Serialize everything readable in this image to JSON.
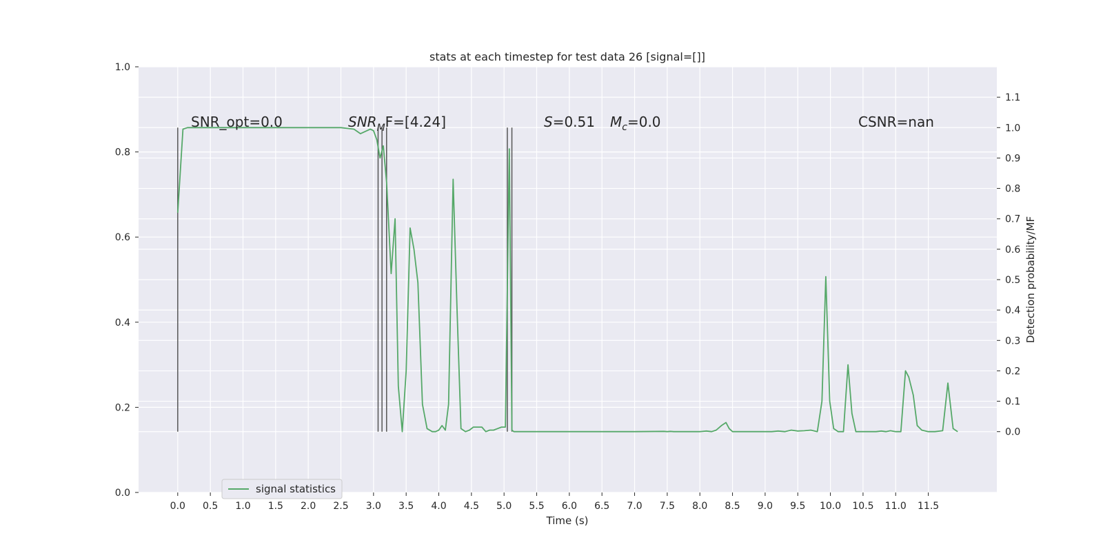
{
  "chart_data": {
    "type": "line",
    "title": "stats at each timestep for test data 26 [signal=[]]",
    "xlabel": "Time (s)",
    "ylabel_left": "",
    "ylabel_right": "Detection probability/MF",
    "xlim": [
      -0.6,
      12.55
    ],
    "ylim_left": [
      0.0,
      1.0
    ],
    "ylim_right": [
      -0.2,
      1.2
    ],
    "x_ticks": [
      "0.0",
      "0.5",
      "1.0",
      "1.5",
      "2.0",
      "2.5",
      "3.0",
      "3.5",
      "4.0",
      "4.5",
      "5.0",
      "5.5",
      "6.0",
      "6.5",
      "7.0",
      "7.5",
      "8.0",
      "8.5",
      "9.0",
      "9.5",
      "10.0",
      "10.5",
      "11.0",
      "11.5"
    ],
    "y_left_ticks": [
      "0.0",
      "0.2",
      "0.4",
      "0.6",
      "0.8",
      "1.0"
    ],
    "y_right_ticks": [
      "0.0",
      "0.1",
      "0.2",
      "0.3",
      "0.4",
      "0.5",
      "0.6",
      "0.7",
      "0.8",
      "0.9",
      "1.0",
      "1.1"
    ],
    "background_color": "#eaeaf2",
    "grid": true,
    "legend_position": "lower-left",
    "annotations": {
      "snr_opt": "SNR_opt=0.0",
      "snr_mf_base": "SNR",
      "snr_mf_sub": "M",
      "snr_mf_rest": "F=[4.24]",
      "s_label": "S",
      "s_value": "=0.51",
      "mc_base": "M",
      "mc_sub": "c",
      "mc_value": "=0.0",
      "csnr": "CSNR=nan"
    },
    "vertical_markers": [
      0.0,
      3.07,
      3.13,
      3.2,
      5.05,
      5.12
    ],
    "series": [
      {
        "name": "signal statistics",
        "color": "#55a868",
        "x": [
          0.0,
          0.08,
          0.15,
          0.25,
          0.5,
          1.0,
          1.5,
          2.0,
          2.5,
          2.7,
          2.8,
          2.9,
          2.95,
          3.0,
          3.05,
          3.1,
          3.15,
          3.2,
          3.27,
          3.33,
          3.38,
          3.44,
          3.5,
          3.56,
          3.62,
          3.68,
          3.75,
          3.82,
          3.9,
          3.95,
          4.0,
          4.05,
          4.1,
          4.15,
          4.22,
          4.28,
          4.34,
          4.41,
          4.47,
          4.53,
          4.6,
          4.66,
          4.72,
          4.78,
          4.84,
          4.9,
          4.96,
          5.02,
          5.08,
          5.12,
          5.15,
          5.2,
          5.25,
          5.35,
          5.5,
          6.0,
          6.5,
          7.0,
          7.45,
          7.5,
          7.55,
          7.6,
          8.0,
          8.1,
          8.18,
          8.25,
          8.33,
          8.4,
          8.45,
          8.5,
          8.6,
          8.8,
          9.0,
          9.1,
          9.2,
          9.3,
          9.4,
          9.5,
          9.6,
          9.7,
          9.8,
          9.87,
          9.93,
          9.99,
          10.05,
          10.12,
          10.2,
          10.27,
          10.33,
          10.39,
          10.45,
          10.55,
          10.7,
          10.78,
          10.85,
          10.92,
          11.0,
          11.08,
          11.15,
          11.2,
          11.27,
          11.33,
          11.4,
          11.5,
          11.6,
          11.72,
          11.8,
          11.88,
          11.95
        ],
        "y": [
          0.72,
          0.995,
          1.0,
          1.0,
          1.0,
          1.0,
          1.0,
          1.0,
          1.0,
          0.995,
          0.98,
          0.99,
          0.995,
          0.99,
          0.96,
          0.9,
          0.94,
          0.82,
          0.52,
          0.7,
          0.15,
          0.0,
          0.2,
          0.67,
          0.6,
          0.49,
          0.09,
          0.01,
          0.0,
          0.0,
          0.005,
          0.02,
          0.005,
          0.09,
          0.83,
          0.4,
          0.01,
          0.0,
          0.005,
          0.015,
          0.015,
          0.015,
          0.0,
          0.005,
          0.005,
          0.01,
          0.015,
          0.015,
          0.93,
          0.005,
          0.0,
          0.0,
          0.0,
          0.0,
          0.0,
          0.0,
          0.0,
          0.0,
          0.001,
          0.0,
          0.001,
          0.0,
          0.0,
          0.002,
          0.0,
          0.005,
          0.02,
          0.03,
          0.01,
          0.0,
          0.0,
          0.0,
          0.0,
          0.0,
          0.002,
          0.0,
          0.005,
          0.002,
          0.003,
          0.005,
          0.0,
          0.1,
          0.51,
          0.1,
          0.01,
          0.0,
          0.0,
          0.22,
          0.06,
          0.0,
          0.0,
          0.0,
          0.0,
          0.002,
          0.0,
          0.003,
          0.0,
          0.0,
          0.2,
          0.18,
          0.12,
          0.02,
          0.005,
          0.0,
          0.0,
          0.003,
          0.16,
          0.01,
          0.0
        ]
      }
    ]
  }
}
